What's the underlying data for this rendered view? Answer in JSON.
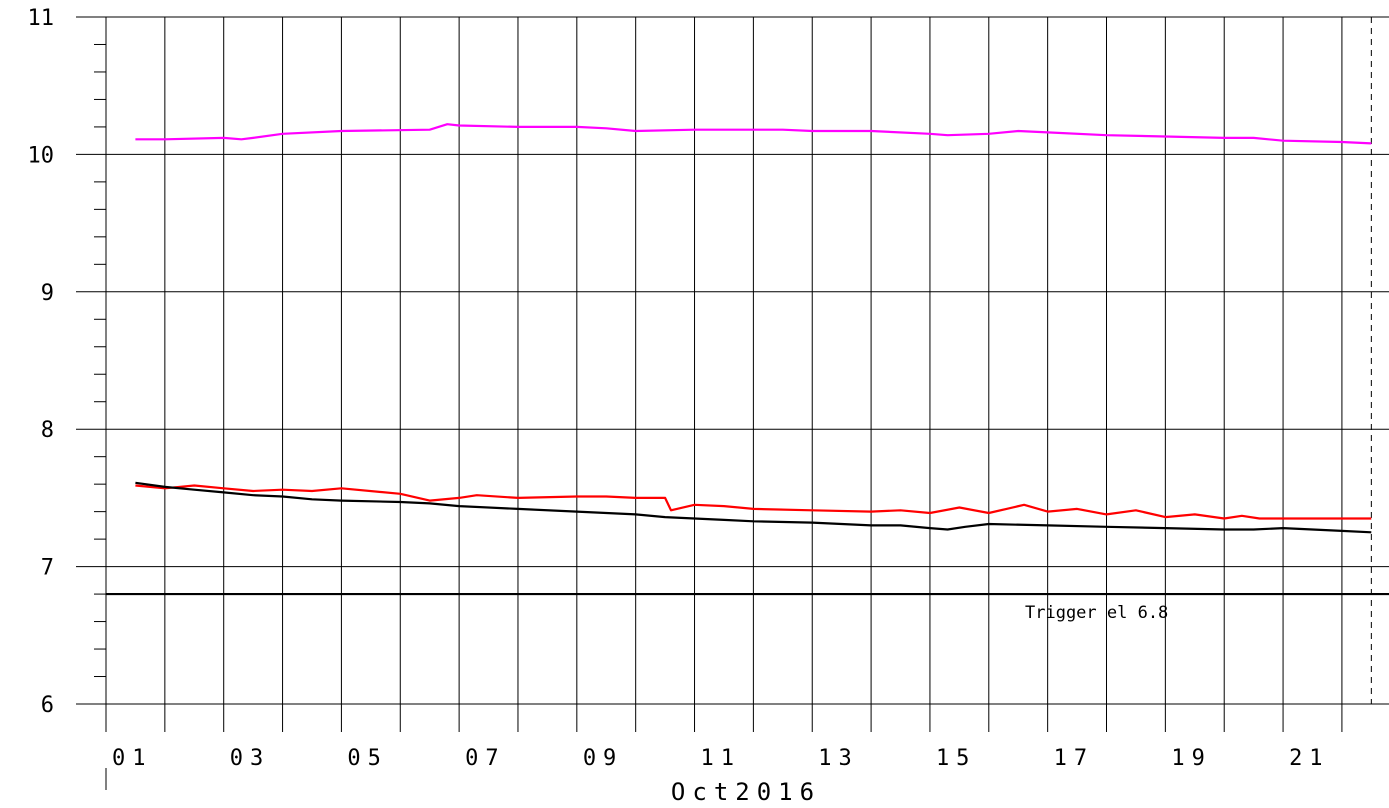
{
  "chart_data": {
    "type": "line",
    "xlabel": "Oct2016",
    "ylabel": "",
    "ylim": [
      6,
      11
    ],
    "y_ticks": [
      6,
      7,
      8,
      9,
      10,
      11
    ],
    "xlim_days": [
      1,
      22.8
    ],
    "x_tick_labels": [
      "01",
      "03",
      "05",
      "07",
      "09",
      "11",
      "13",
      "15",
      "17",
      "19",
      "21"
    ],
    "grid": true,
    "series": [
      {
        "color": "#ff00ff",
        "x": [
          1.5,
          2,
          3,
          3.3,
          3.5,
          4,
          5,
          6.5,
          6.8,
          7,
          8,
          9,
          9.5,
          10,
          11,
          12,
          12.5,
          13,
          14,
          15,
          15.3,
          16,
          16.5,
          17,
          18,
          19,
          20,
          20.5,
          21,
          22,
          22.5
        ],
        "values": [
          10.11,
          10.11,
          10.12,
          10.11,
          10.12,
          10.15,
          10.17,
          10.18,
          10.22,
          10.21,
          10.2,
          10.2,
          10.19,
          10.17,
          10.18,
          10.18,
          10.18,
          10.17,
          10.17,
          10.15,
          10.14,
          10.15,
          10.17,
          10.16,
          10.14,
          10.13,
          10.12,
          10.12,
          10.1,
          10.09,
          10.08
        ]
      },
      {
        "color": "#ff0000",
        "x": [
          1.5,
          2,
          2.5,
          3,
          3.5,
          4,
          4.5,
          5,
          6,
          6.5,
          7,
          7.3,
          8,
          9,
          9.5,
          10,
          10.5,
          10.6,
          11,
          11.5,
          12,
          13,
          14,
          14.5,
          15,
          15.5,
          16,
          16.3,
          16.6,
          17,
          17.5,
          18,
          18.5,
          19,
          19.5,
          20,
          20.3,
          20.6,
          21,
          22,
          22.5
        ],
        "values": [
          7.59,
          7.57,
          7.59,
          7.57,
          7.55,
          7.56,
          7.55,
          7.57,
          7.53,
          7.48,
          7.5,
          7.52,
          7.5,
          7.51,
          7.51,
          7.5,
          7.5,
          7.41,
          7.45,
          7.44,
          7.42,
          7.41,
          7.4,
          7.41,
          7.39,
          7.43,
          7.39,
          7.42,
          7.45,
          7.4,
          7.42,
          7.38,
          7.41,
          7.36,
          7.38,
          7.35,
          7.37,
          7.35,
          7.35,
          7.35,
          7.35
        ]
      },
      {
        "color": "#000000",
        "x": [
          1.5,
          2,
          2.5,
          3,
          3.5,
          4,
          4.5,
          5,
          6,
          6.5,
          7,
          8,
          9,
          10,
          10.5,
          11,
          11.5,
          12,
          13,
          14,
          14.5,
          15,
          15.3,
          15.6,
          16,
          17,
          18,
          19,
          20,
          20.5,
          21,
          22,
          22.5
        ],
        "values": [
          7.61,
          7.58,
          7.56,
          7.54,
          7.52,
          7.51,
          7.49,
          7.48,
          7.47,
          7.46,
          7.44,
          7.42,
          7.4,
          7.38,
          7.36,
          7.35,
          7.34,
          7.33,
          7.32,
          7.3,
          7.3,
          7.28,
          7.27,
          7.29,
          7.31,
          7.3,
          7.29,
          7.28,
          7.27,
          7.27,
          7.28,
          7.26,
          7.25
        ]
      }
    ],
    "reference_line": {
      "value": 6.8,
      "label": "Trigger el 6.8",
      "color": "#000000"
    },
    "marker_line_day": 22.5
  }
}
